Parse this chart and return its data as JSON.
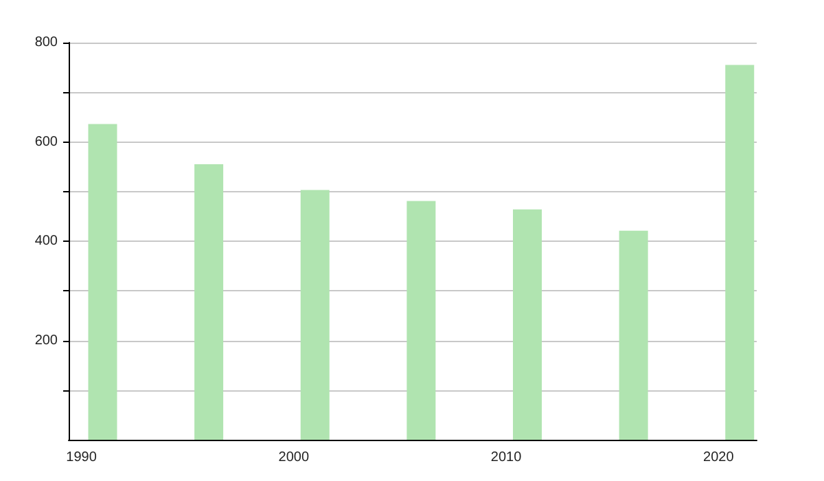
{
  "chart_data": {
    "type": "bar",
    "x": [
      1991,
      1996,
      2001,
      2006,
      2011,
      2016,
      2021
    ],
    "values": [
      636,
      555,
      503,
      481,
      464,
      421,
      755
    ],
    "color": "#b0e4b0",
    "xlim": [
      1989.4,
      2021.8
    ],
    "xticks": [
      1990,
      2000,
      2010,
      2020
    ],
    "ylim": [
      0,
      800
    ],
    "yticks": [
      {
        "value": 100,
        "label": null
      },
      200,
      {
        "value": 300,
        "label": null
      },
      400,
      {
        "value": 500,
        "label": null
      },
      600,
      {
        "value": 700,
        "label": null
      },
      800
    ],
    "grid": "y"
  }
}
